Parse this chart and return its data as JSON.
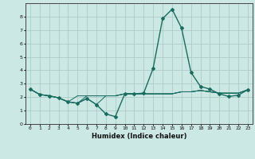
{
  "xlabel": "Humidex (Indice chaleur)",
  "background_color": "#cce8e4",
  "grid_color": "#aaccc8",
  "line_color": "#1a6b60",
  "xlim": [
    -0.5,
    23.5
  ],
  "ylim": [
    0,
    9
  ],
  "xticks": [
    0,
    1,
    2,
    3,
    4,
    5,
    6,
    7,
    8,
    9,
    10,
    11,
    12,
    13,
    14,
    15,
    16,
    17,
    18,
    19,
    20,
    21,
    22,
    23
  ],
  "yticks": [
    0,
    1,
    2,
    3,
    4,
    5,
    6,
    7,
    8
  ],
  "series": [
    {
      "x": [
        0,
        1,
        2,
        3,
        4,
        5,
        6,
        7,
        8,
        9,
        10,
        11,
        12,
        13,
        14,
        15,
        16,
        17,
        18,
        19,
        20,
        21,
        22,
        23
      ],
      "y": [
        2.6,
        2.2,
        2.1,
        1.95,
        1.65,
        1.55,
        1.9,
        1.45,
        0.75,
        0.55,
        2.25,
        2.25,
        2.3,
        4.15,
        7.85,
        8.55,
        7.15,
        3.85,
        2.8,
        2.6,
        2.25,
        2.05,
        2.15,
        2.55
      ],
      "marker": true,
      "linewidth": 1.0
    },
    {
      "x": [
        0,
        1,
        2,
        3,
        4,
        5,
        6,
        7,
        8,
        9,
        10,
        11,
        12,
        13,
        14,
        15,
        16,
        17,
        18,
        19,
        20,
        21,
        22,
        23
      ],
      "y": [
        2.6,
        2.2,
        2.1,
        1.95,
        1.65,
        2.1,
        2.1,
        2.1,
        2.1,
        2.1,
        2.25,
        2.25,
        2.25,
        2.25,
        2.25,
        2.25,
        2.4,
        2.4,
        2.5,
        2.4,
        2.3,
        2.3,
        2.3,
        2.55
      ],
      "marker": false,
      "linewidth": 0.7
    },
    {
      "x": [
        0,
        1,
        2,
        3,
        4,
        5,
        6,
        7,
        8,
        9,
        10,
        11,
        12,
        13,
        14,
        15,
        16,
        17,
        18,
        19,
        20,
        21,
        22,
        23
      ],
      "y": [
        2.6,
        2.2,
        2.1,
        1.95,
        1.65,
        1.55,
        2.1,
        2.1,
        2.1,
        2.1,
        2.25,
        2.25,
        2.25,
        2.25,
        2.25,
        2.25,
        2.4,
        2.4,
        2.5,
        2.4,
        2.3,
        2.3,
        2.3,
        2.55
      ],
      "marker": false,
      "linewidth": 0.7
    },
    {
      "x": [
        0,
        1,
        2,
        3,
        4,
        5,
        6,
        7,
        8,
        9,
        10,
        11,
        12,
        13,
        14,
        15,
        16,
        17,
        18,
        19,
        20,
        21,
        22,
        23
      ],
      "y": [
        2.6,
        2.2,
        2.1,
        1.95,
        1.65,
        1.55,
        1.9,
        1.45,
        2.1,
        2.1,
        2.25,
        2.25,
        2.25,
        2.25,
        2.25,
        2.25,
        2.4,
        2.4,
        2.5,
        2.4,
        2.3,
        2.3,
        2.3,
        2.55
      ],
      "marker": false,
      "linewidth": 0.7
    }
  ]
}
